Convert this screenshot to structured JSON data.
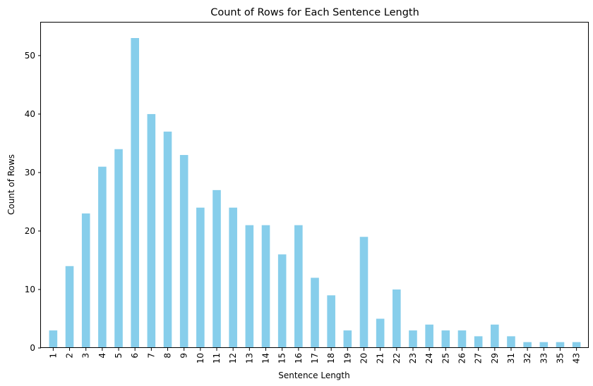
{
  "chart_data": {
    "type": "bar",
    "title": "Count of Rows for Each Sentence Length",
    "xlabel": "Sentence Length",
    "ylabel": "Count of Rows",
    "categories": [
      "1",
      "2",
      "3",
      "4",
      "5",
      "6",
      "7",
      "8",
      "9",
      "10",
      "11",
      "12",
      "13",
      "14",
      "15",
      "16",
      "17",
      "18",
      "19",
      "20",
      "21",
      "22",
      "23",
      "24",
      "25",
      "26",
      "27",
      "29",
      "31",
      "32",
      "33",
      "35",
      "43"
    ],
    "values": [
      3,
      14,
      23,
      31,
      34,
      53,
      40,
      37,
      33,
      24,
      27,
      24,
      21,
      21,
      16,
      21,
      12,
      9,
      3,
      19,
      5,
      10,
      3,
      4,
      3,
      3,
      2,
      4,
      2,
      1,
      1,
      1,
      1
    ],
    "ylim": [
      0,
      55.65
    ],
    "yticks": [
      0,
      10,
      20,
      30,
      40,
      50
    ],
    "bar_color": "#87ceeb",
    "grid": false,
    "legend": "none"
  }
}
